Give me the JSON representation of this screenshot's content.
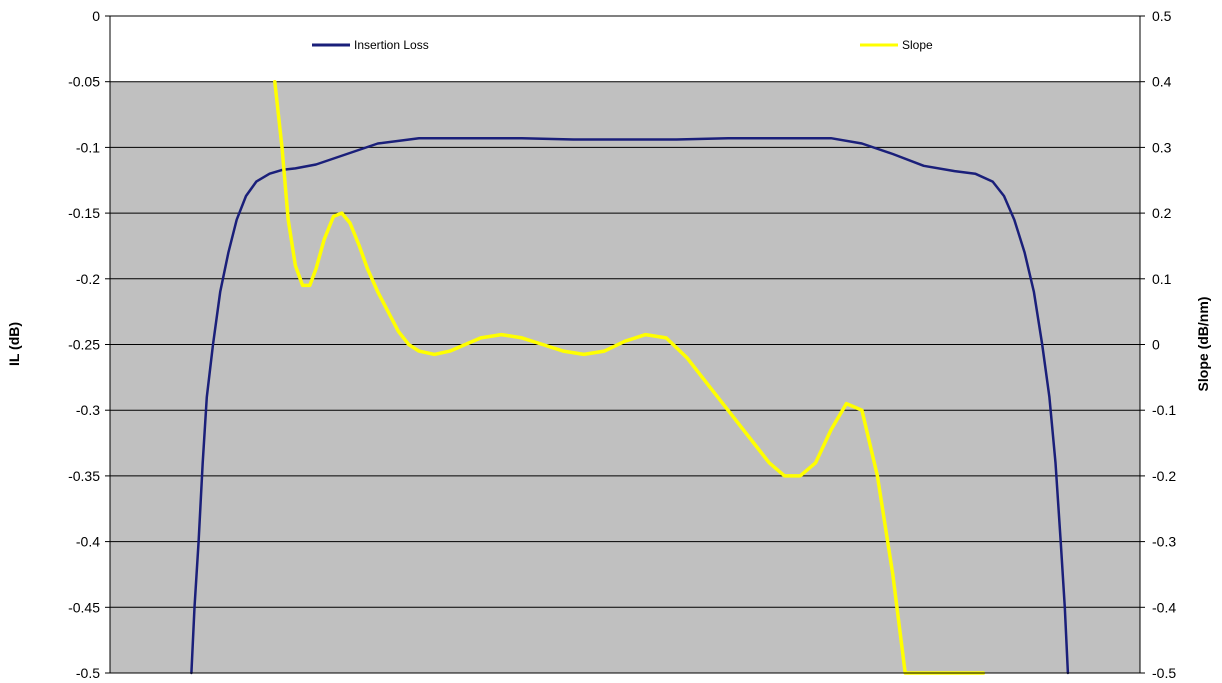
{
  "chart_data": {
    "type": "line",
    "title": "",
    "ylabel": "IL (dB)",
    "y2label": "Slope (dB/nm)",
    "ylim": [
      -0.5,
      0
    ],
    "y2lim": [
      -0.5,
      0.5
    ],
    "y_ticks": [
      "0",
      "-0.05",
      "-0.1",
      "-0.15",
      "-0.2",
      "-0.25",
      "-0.3",
      "-0.35",
      "-0.4",
      "-0.45",
      "-0.5"
    ],
    "y2_ticks": [
      "0.5",
      "0.4",
      "0.3",
      "0.2",
      "0.1",
      "0",
      "-0.1",
      "-0.2",
      "-0.3",
      "-0.4",
      "-0.5"
    ],
    "grid": true,
    "legend_position": "top",
    "series": [
      {
        "name": "Insertion Loss",
        "axis": "left",
        "color": "#1a1f7a",
        "x": [
          0.079,
          0.082,
          0.086,
          0.09,
          0.094,
          0.1,
          0.107,
          0.115,
          0.123,
          0.132,
          0.142,
          0.155,
          0.168,
          0.18,
          0.2,
          0.23,
          0.26,
          0.3,
          0.35,
          0.4,
          0.45,
          0.5,
          0.55,
          0.6,
          0.65,
          0.7,
          0.73,
          0.76,
          0.79,
          0.82,
          0.84,
          0.857,
          0.868,
          0.878,
          0.888,
          0.897,
          0.905,
          0.912,
          0.918,
          0.923,
          0.927,
          0.93
        ],
        "values": [
          -0.5,
          -0.45,
          -0.4,
          -0.34,
          -0.29,
          -0.25,
          -0.21,
          -0.18,
          -0.155,
          -0.137,
          -0.126,
          -0.12,
          -0.117,
          -0.116,
          -0.113,
          -0.105,
          -0.097,
          -0.093,
          -0.093,
          -0.093,
          -0.094,
          -0.094,
          -0.094,
          -0.093,
          -0.093,
          -0.093,
          -0.097,
          -0.105,
          -0.114,
          -0.118,
          -0.12,
          -0.126,
          -0.137,
          -0.155,
          -0.18,
          -0.21,
          -0.25,
          -0.29,
          -0.34,
          -0.4,
          -0.45,
          -0.5
        ]
      },
      {
        "name": "Slope",
        "axis": "right",
        "color": "#ffff00",
        "x": [
          0.16,
          0.167,
          0.173,
          0.18,
          0.187,
          0.194,
          0.2,
          0.208,
          0.217,
          0.225,
          0.233,
          0.242,
          0.25,
          0.26,
          0.27,
          0.28,
          0.29,
          0.3,
          0.315,
          0.33,
          0.345,
          0.36,
          0.38,
          0.4,
          0.42,
          0.44,
          0.46,
          0.48,
          0.5,
          0.52,
          0.54,
          0.56,
          0.58,
          0.6,
          0.62,
          0.64,
          0.655,
          0.67,
          0.685,
          0.7,
          0.715,
          0.73,
          0.745,
          0.76,
          0.772,
          0.785,
          0.795,
          0.805,
          0.812,
          0.818,
          0.823,
          0.828,
          0.832,
          0.836,
          0.84,
          0.844,
          0.848
        ],
        "values": [
          0.4,
          0.3,
          0.19,
          0.12,
          0.09,
          0.09,
          0.115,
          0.16,
          0.195,
          0.2,
          0.185,
          0.15,
          0.115,
          0.08,
          0.05,
          0.02,
          0.0,
          -0.01,
          -0.015,
          -0.01,
          0.0,
          0.01,
          0.015,
          0.01,
          0.0,
          -0.01,
          -0.015,
          -0.01,
          0.005,
          0.015,
          0.01,
          -0.02,
          -0.06,
          -0.1,
          -0.14,
          -0.18,
          -0.2,
          -0.2,
          -0.18,
          -0.13,
          -0.09,
          -0.1,
          -0.2,
          -0.35,
          -0.5,
          -0.5,
          -0.5,
          -0.5,
          -0.5,
          -0.5,
          -0.5,
          -0.5,
          -0.5,
          -0.5,
          -0.5,
          -0.5,
          -0.5
        ]
      }
    ]
  }
}
